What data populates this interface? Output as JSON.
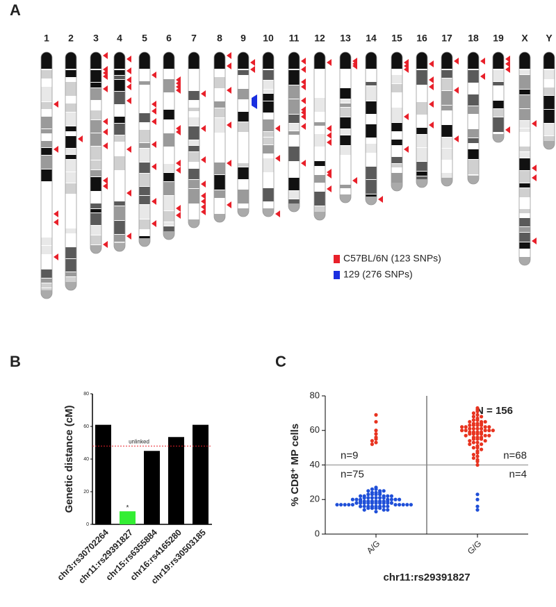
{
  "chart_data": [
    {
      "type": "ideogram",
      "panel_label": "A",
      "chromosomes": [
        "1",
        "2",
        "3",
        "4",
        "5",
        "6",
        "7",
        "8",
        "9",
        "10",
        "11",
        "12",
        "13",
        "14",
        "15",
        "16",
        "17",
        "18",
        "19",
        "X",
        "Y"
      ],
      "legend": [
        {
          "label": "C57BL/6N (123 SNPs)",
          "color": "#e8202a"
        },
        {
          "label": "129 (276 SNPs)",
          "color": "#1a2fe0"
        }
      ]
    },
    {
      "type": "bar",
      "panel_label": "B",
      "ylabel": "Genetic distance (cM)",
      "categories": [
        "chr3:rs30702264",
        "chr11:rs29391827",
        "chr15:rs6355884",
        "chr16:rs4165280",
        "chr19:rs30503185"
      ],
      "values": [
        61,
        8,
        45,
        53.5,
        61
      ],
      "colors": [
        "#000000",
        "#33ee33",
        "#000000",
        "#000000",
        "#000000"
      ],
      "ylim": [
        0,
        80
      ],
      "yticks": [
        0,
        20,
        40,
        60,
        80
      ],
      "threshold": 48,
      "threshold_label": "unlinked",
      "threshold_color": "#e8202a",
      "bar_annotations": [
        null,
        "*",
        null,
        null,
        null
      ]
    },
    {
      "type": "dotplot",
      "panel_label": "C",
      "title": "N = 156",
      "ylabel": "% CD8⁺ MP cells",
      "xlabel": "chr11:rs29391827",
      "categories": [
        "A/G",
        "G/G"
      ],
      "ylim": [
        0,
        80
      ],
      "yticks": [
        0,
        20,
        40,
        60,
        80
      ],
      "hline": 40,
      "series": [
        {
          "color": "#e8331f",
          "values": [
            [
              69,
              65,
              60,
              58,
              56,
              55,
              54,
              53,
              52
            ],
            [
              73,
              72,
              71,
              70,
              69,
              68,
              68,
              67,
              66,
              66,
              65,
              65,
              65,
              64,
              64,
              64,
              63,
              63,
              63,
              63,
              62,
              62,
              62,
              62,
              61,
              61,
              61,
              61,
              60,
              60,
              60,
              60,
              60,
              59,
              59,
              59,
              59,
              58,
              58,
              58,
              58,
              57,
              57,
              57,
              56,
              56,
              56,
              55,
              55,
              55,
              54,
              54,
              53,
              53,
              52,
              52,
              51,
              50,
              50,
              49,
              48,
              47,
              46,
              45,
              44,
              43,
              42,
              40
            ]
          ]
        },
        {
          "color": "#1f4fd8",
          "values": [
            [
              27,
              26,
              26,
              25,
              25,
              25,
              24,
              24,
              24,
              23,
              23,
              23,
              23,
              22,
              22,
              22,
              22,
              22,
              21,
              21,
              21,
              21,
              21,
              21,
              20,
              20,
              20,
              20,
              20,
              20,
              20,
              19,
              19,
              19,
              19,
              19,
              19,
              19,
              19,
              18,
              18,
              18,
              18,
              18,
              18,
              18,
              18,
              18,
              18,
              17,
              17,
              17,
              17,
              17,
              17,
              17,
              17,
              17,
              17,
              16,
              16,
              16,
              16,
              16,
              16,
              16,
              16,
              15,
              15,
              15,
              15,
              14,
              14,
              14,
              13
            ],
            [
              23,
              20,
              16,
              14
            ]
          ]
        }
      ],
      "group_labels": [
        [
          "n=9",
          "n=68"
        ],
        [
          "n=75",
          "n=4"
        ]
      ]
    }
  ]
}
